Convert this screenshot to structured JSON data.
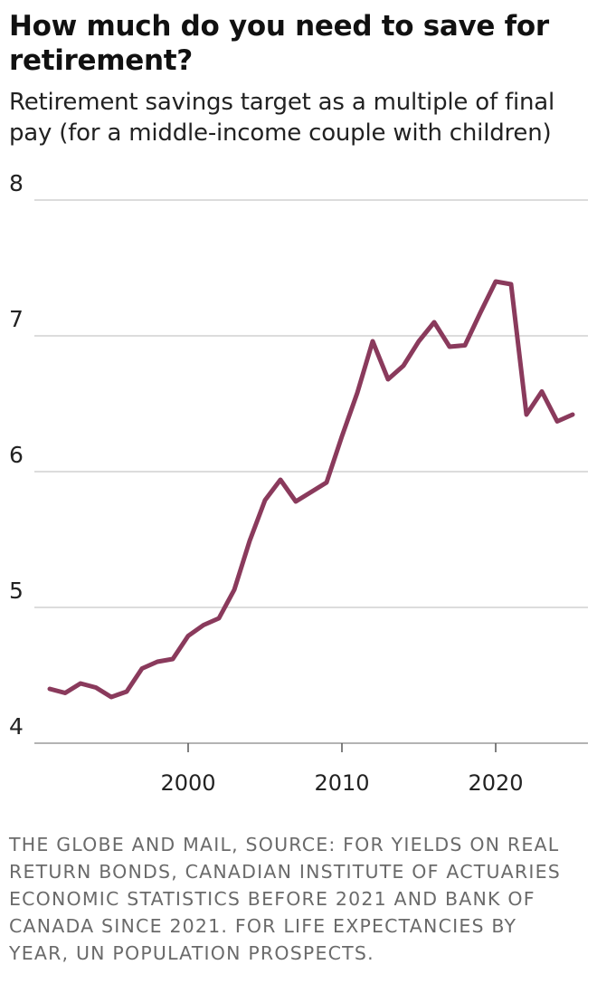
{
  "title": "How much do you need to save for retirement?",
  "subtitle": "Retirement savings target as a multiple of final pay (for a middle-income couple with children)",
  "source": "THE GLOBE AND MAIL, SOURCE: FOR YIELDS ON REAL RETURN BONDS, CANADIAN INSTITUTE OF ACTUARIES ECONOMIC STATISTICS BEFORE 2021 AND BANK OF CANADA SINCE 2021. FOR LIFE EXPECTANCIES BY YEAR, UN POPULATION PROSPECTS.",
  "chart_data": {
    "type": "line",
    "title": "How much do you need to save for retirement?",
    "subtitle": "Retirement savings target as a multiple of final pay (for a middle-income couple with children)",
    "xlabel": "",
    "ylabel": "",
    "xlim": [
      1990,
      2026
    ],
    "ylim": [
      4,
      8
    ],
    "yticks": [
      8,
      7,
      6,
      5,
      4
    ],
    "xticks": [
      2000,
      2010,
      2020
    ],
    "grid": true,
    "line_color": "#8a3a5c",
    "series": [
      {
        "x": [
          1991,
          1992,
          1993,
          1994,
          1995,
          1996,
          1997,
          1998,
          1999,
          2000,
          2001,
          2002,
          2003,
          2004,
          2005,
          2006,
          2007,
          2008,
          2009,
          2010,
          2011,
          2012,
          2013,
          2014,
          2015,
          2016,
          2017,
          2018,
          2019,
          2020,
          2021,
          2022,
          2023,
          2024,
          2025
        ],
        "values": [
          4.4,
          4.37,
          4.44,
          4.41,
          4.34,
          4.38,
          4.55,
          4.6,
          4.62,
          4.79,
          4.87,
          4.92,
          5.13,
          5.49,
          5.79,
          5.94,
          5.78,
          5.85,
          5.92,
          6.26,
          6.58,
          6.96,
          6.68,
          6.78,
          6.96,
          7.1,
          6.92,
          6.93,
          7.17,
          7.4,
          7.38,
          6.42,
          6.59,
          6.37,
          6.42
        ]
      }
    ]
  }
}
